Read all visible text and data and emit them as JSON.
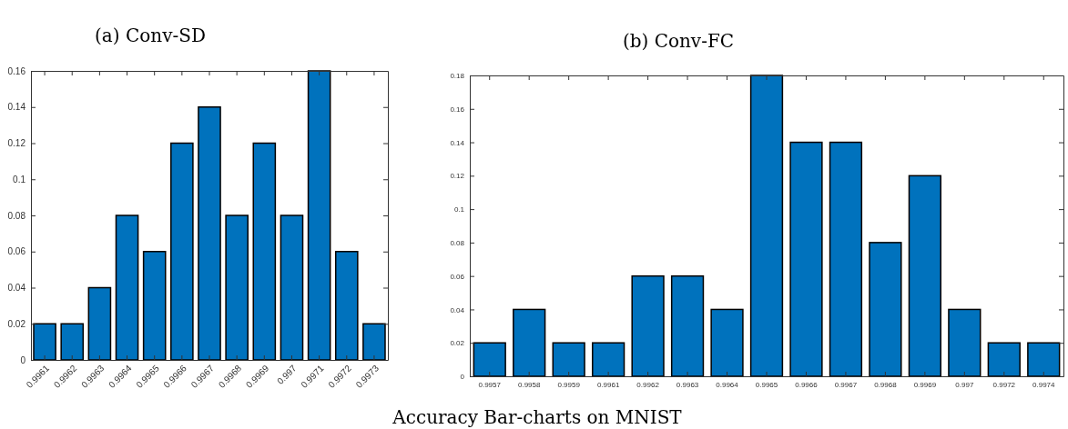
{
  "chart_data": [
    {
      "type": "bar",
      "title": "(a) Conv-SD",
      "categories": [
        "0.9961",
        "0.9962",
        "0.9963",
        "0.9964",
        "0.9965",
        "0.9966",
        "0.9967",
        "0.9968",
        "0.9969",
        "0.997",
        "0.9971",
        "0.9972",
        "0.9973"
      ],
      "values": [
        0.02,
        0.02,
        0.04,
        0.08,
        0.06,
        0.12,
        0.14,
        0.08,
        0.12,
        0.08,
        0.16,
        0.06,
        0.02
      ],
      "color": "#0072bd",
      "ylim": [
        0,
        0.16
      ],
      "yticks": [
        0,
        0.02,
        0.04,
        0.06,
        0.08,
        0.1,
        0.12,
        0.14,
        0.16
      ],
      "grid": false
    },
    {
      "type": "bar",
      "title": "(b) Conv-FC",
      "categories": [
        "0.9957",
        "0.9958",
        "0.9959",
        "0.9961",
        "0.9962",
        "0.9963",
        "0.9964",
        "0.9965",
        "0.9966",
        "0.9967",
        "0.9968",
        "0.9969",
        "0.997",
        "0.9972",
        "0.9974"
      ],
      "values": [
        0.02,
        0.04,
        0.02,
        0.02,
        0.06,
        0.06,
        0.04,
        0.18,
        0.14,
        0.14,
        0.08,
        0.12,
        0.04,
        0.02,
        0.02
      ],
      "color": "#0072bd",
      "ylim": [
        0,
        0.18
      ],
      "yticks": [
        0,
        0.02,
        0.04,
        0.06,
        0.08,
        0.1,
        0.12,
        0.14,
        0.16,
        0.18
      ],
      "grid": false,
      "annotations": [
        "Accuracy Bar-charts on MNIST"
      ]
    }
  ]
}
